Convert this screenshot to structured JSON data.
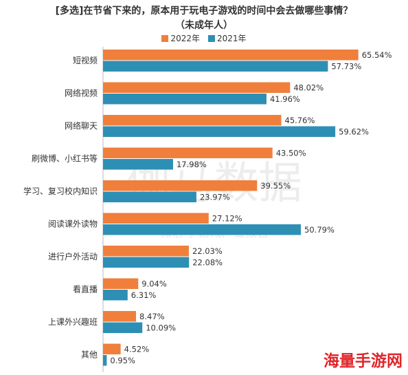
{
  "chart_data": {
    "type": "bar",
    "orientation": "horizontal",
    "title": "[多选]在节省下来的，原本用于玩电子游戏的时间中会去做哪些事情？",
    "subtitle": "（未成年人）",
    "categories": [
      "短视频",
      "网络视频",
      "网络聊天",
      "刷微博、小红书等",
      "学习、复习校内知识",
      "阅读课外读物",
      "进行户外活动",
      "看直播",
      "上课外兴趣班",
      "其他"
    ],
    "series": [
      {
        "name": "2022年",
        "color": "#f07f3c",
        "values": [
          65.54,
          48.02,
          45.76,
          43.5,
          39.55,
          27.12,
          22.03,
          9.04,
          8.47,
          4.52
        ]
      },
      {
        "name": "2021年",
        "color": "#2e8fb5",
        "values": [
          57.73,
          41.96,
          59.62,
          17.98,
          23.97,
          50.79,
          22.08,
          6.31,
          10.09,
          0.95
        ]
      }
    ],
    "value_suffix": "%",
    "xlim": [
      0,
      70
    ],
    "legend_position": "top",
    "grid": false
  },
  "watermark": {
    "text": "伽马数据",
    "subtext": "微信号 游戏产业报告"
  },
  "corner_logo": "海量手游网"
}
